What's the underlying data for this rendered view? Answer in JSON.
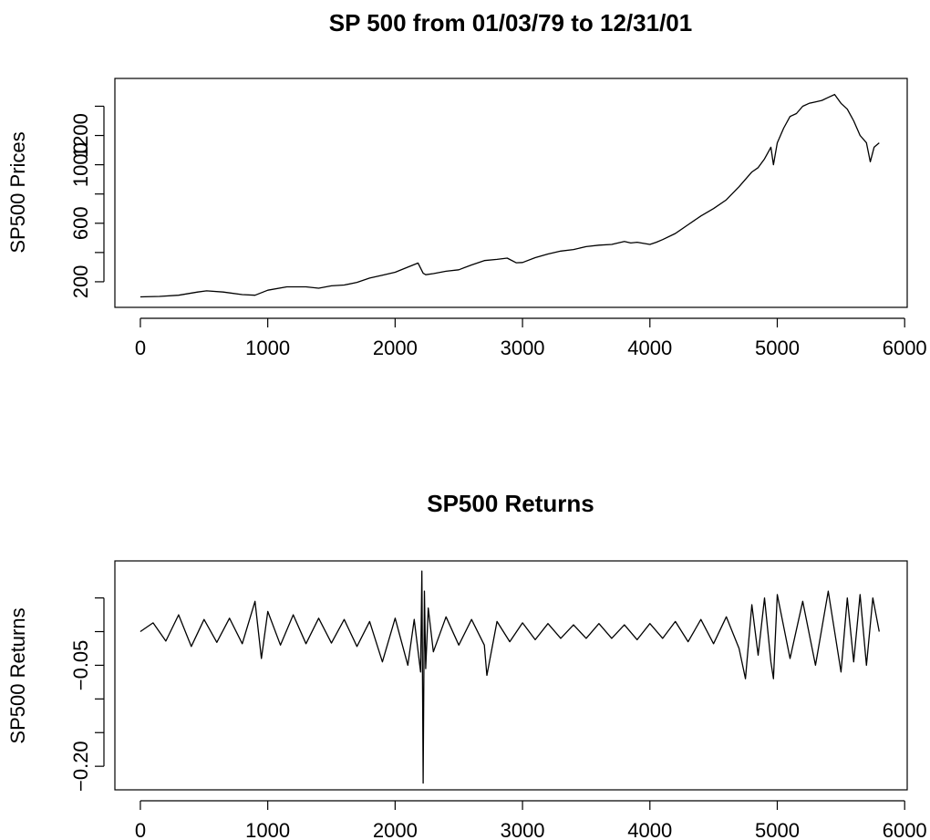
{
  "chart_data": [
    {
      "type": "line",
      "title": "SP 500 from 01/03/79 to 12/31/01",
      "xlabel": "",
      "ylabel": "SP500 Prices",
      "xlim": [
        -200,
        6020
      ],
      "ylim": [
        25,
        1590
      ],
      "x_ticks": [
        0,
        1000,
        2000,
        3000,
        4000,
        5000,
        6000
      ],
      "y_ticks": [
        200,
        400,
        600,
        800,
        1000,
        1200,
        1400
      ],
      "y_tick_labels": [
        "200",
        "",
        "600",
        "",
        "1000",
        "1200",
        ""
      ],
      "grid": false,
      "series": [
        {
          "color": "#000000",
          "x": [
            0,
            150,
            300,
            450,
            520,
            650,
            800,
            900,
            1000,
            1150,
            1300,
            1400,
            1500,
            1600,
            1700,
            1800,
            1900,
            2000,
            2100,
            2180,
            2220,
            2240,
            2300,
            2400,
            2500,
            2600,
            2700,
            2800,
            2880,
            2950,
            3000,
            3100,
            3200,
            3300,
            3400,
            3500,
            3600,
            3700,
            3800,
            3850,
            3900,
            4000,
            4050,
            4100,
            4200,
            4300,
            4400,
            4500,
            4600,
            4700,
            4800,
            4850,
            4900,
            4950,
            4970,
            5000,
            5050,
            5100,
            5150,
            5200,
            5250,
            5300,
            5350,
            5400,
            5450,
            5500,
            5550,
            5600,
            5650,
            5700,
            5730,
            5760,
            5800
          ],
          "y": [
            97,
            100,
            108,
            130,
            138,
            130,
            112,
            108,
            142,
            165,
            165,
            156,
            172,
            178,
            196,
            225,
            245,
            265,
            300,
            328,
            258,
            248,
            256,
            272,
            282,
            315,
            345,
            353,
            362,
            330,
            332,
            365,
            390,
            410,
            420,
            440,
            450,
            455,
            475,
            465,
            470,
            455,
            470,
            488,
            530,
            590,
            650,
            700,
            760,
            850,
            950,
            980,
            1040,
            1120,
            1000,
            1150,
            1250,
            1330,
            1350,
            1400,
            1420,
            1430,
            1440,
            1460,
            1480,
            1420,
            1380,
            1300,
            1200,
            1150,
            1020,
            1120,
            1150
          ]
        }
      ]
    },
    {
      "type": "line",
      "title": "SP500 Returns",
      "xlabel": "",
      "ylabel": "SP500 Returns",
      "xlim": [
        -200,
        6020
      ],
      "ylim": [
        -0.235,
        0.105
      ],
      "x_ticks": [
        0,
        1000,
        2000,
        3000,
        4000,
        5000,
        6000
      ],
      "y_ticks": [
        -0.2,
        -0.15,
        -0.1,
        -0.05,
        0,
        0.05
      ],
      "y_tick_labels": [
        "-0.20",
        "",
        "",
        "-0.05",
        "",
        ""
      ],
      "grid": false,
      "series": [
        {
          "color": "#000000",
          "x": [
            0,
            100,
            200,
            300,
            400,
            500,
            600,
            700,
            800,
            900,
            950,
            1000,
            1100,
            1200,
            1300,
            1400,
            1500,
            1600,
            1700,
            1800,
            1900,
            2000,
            2100,
            2150,
            2200,
            2210,
            2220,
            2230,
            2240,
            2260,
            2300,
            2400,
            2500,
            2600,
            2700,
            2720,
            2800,
            2900,
            3000,
            3100,
            3200,
            3300,
            3400,
            3500,
            3600,
            3700,
            3800,
            3900,
            4000,
            4100,
            4200,
            4300,
            4400,
            4500,
            4600,
            4700,
            4750,
            4800,
            4850,
            4900,
            4950,
            4970,
            5000,
            5100,
            5200,
            5300,
            5400,
            5500,
            5550,
            5600,
            5650,
            5700,
            5750,
            5800
          ],
          "y": [
            0.0,
            0.013,
            -0.014,
            0.025,
            -0.022,
            0.018,
            -0.016,
            0.02,
            -0.018,
            0.045,
            -0.04,
            0.03,
            -0.02,
            0.025,
            -0.018,
            0.02,
            -0.017,
            0.018,
            -0.022,
            0.015,
            -0.045,
            0.02,
            -0.05,
            0.018,
            -0.06,
            0.09,
            -0.225,
            0.06,
            -0.055,
            0.035,
            -0.03,
            0.022,
            -0.02,
            0.018,
            -0.02,
            -0.065,
            0.015,
            -0.015,
            0.013,
            -0.012,
            0.012,
            -0.01,
            0.01,
            -0.01,
            0.012,
            -0.01,
            0.01,
            -0.012,
            0.012,
            -0.01,
            0.015,
            -0.015,
            0.018,
            -0.018,
            0.022,
            -0.025,
            -0.07,
            0.04,
            -0.035,
            0.05,
            -0.045,
            -0.07,
            0.055,
            -0.04,
            0.045,
            -0.05,
            0.06,
            -0.06,
            0.05,
            -0.045,
            0.055,
            -0.05,
            0.05,
            0.0
          ]
        }
      ]
    }
  ]
}
